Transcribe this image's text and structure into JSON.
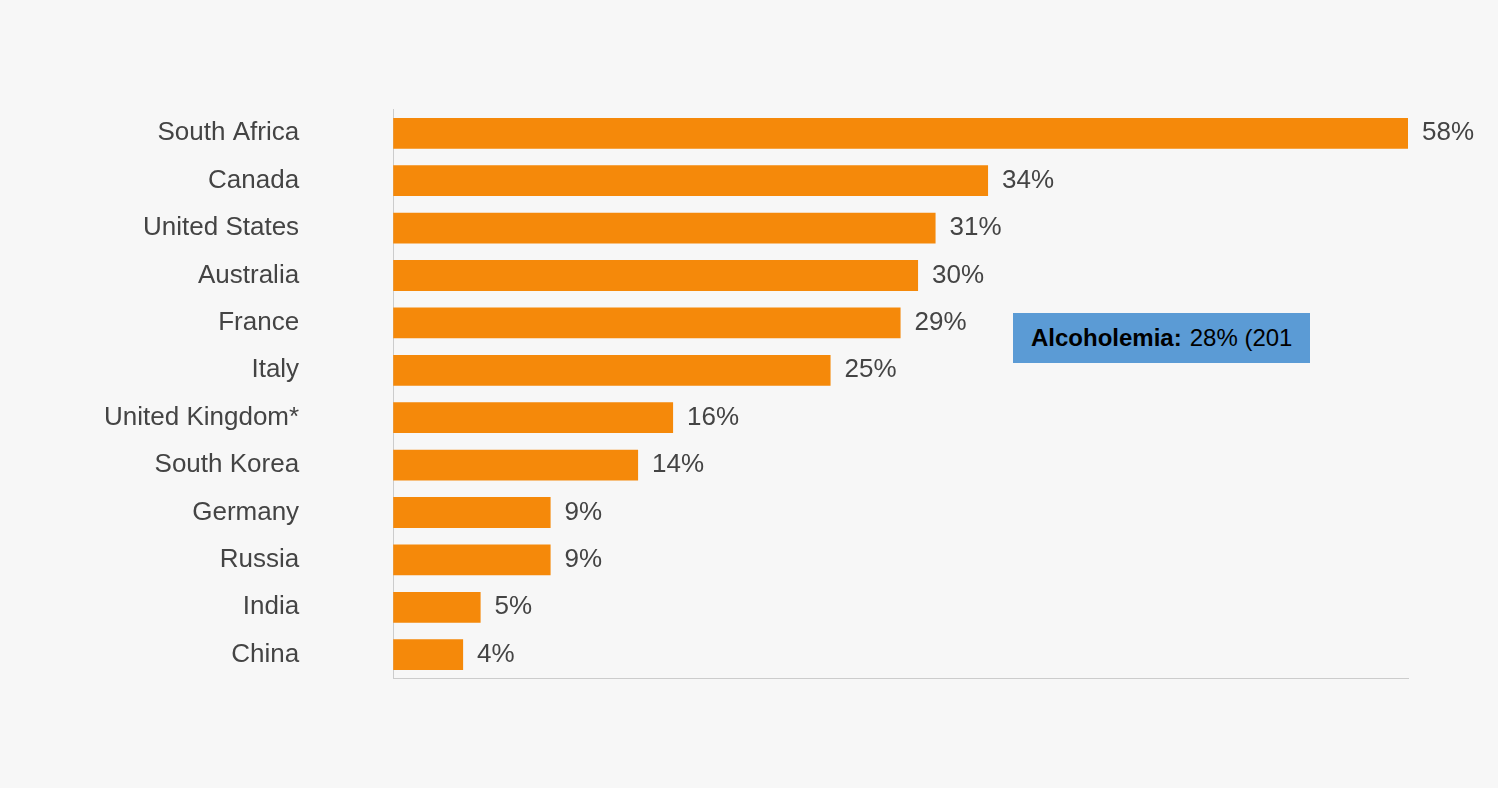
{
  "chart_data": {
    "type": "bar",
    "orientation": "horizontal",
    "categories": [
      "South Africa",
      "Canada",
      "United States",
      "Australia",
      "France",
      "Italy",
      "United Kingdom*",
      "South Korea",
      "Germany",
      "Russia",
      "India",
      "China"
    ],
    "values": [
      58,
      34,
      31,
      30,
      29,
      25,
      16,
      14,
      9,
      9,
      5,
      4
    ],
    "value_labels": [
      "58%",
      "34%",
      "31%",
      "30%",
      "29%",
      "25%",
      "16%",
      "14%",
      "9%",
      "9%",
      "5%",
      "4%"
    ],
    "color": "#f5890a",
    "xlim": [
      0,
      58
    ],
    "grid": false,
    "data_labels": true,
    "tick_labels": "y",
    "annotations": [
      {
        "label": "Alcoholemia:",
        "text": "28% (201"
      }
    ]
  }
}
